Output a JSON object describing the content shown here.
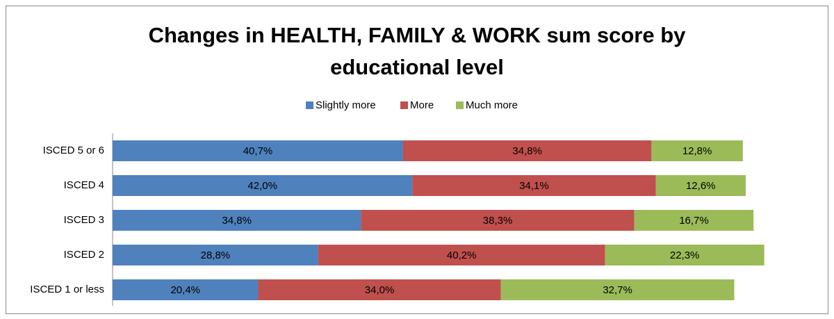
{
  "chart_data": {
    "type": "stacked-barh",
    "title": "Changes in HEALTH, FAMILY & WORK sum score by educational level",
    "categories": [
      "ISCED 5 or 6",
      "ISCED 4",
      "ISCED 3",
      "ISCED 2",
      "ISCED 1 or less"
    ],
    "series": [
      {
        "name": "Slightly more",
        "color": "#4f81bd",
        "values": [
          40.7,
          42.0,
          34.8,
          28.8,
          20.4
        ],
        "value_labels": [
          "40,7%",
          "42,0%",
          "34,8%",
          "28,8%",
          "20,4%"
        ]
      },
      {
        "name": "More",
        "color": "#c0504d",
        "values": [
          34.8,
          34.1,
          38.3,
          40.2,
          34.0
        ],
        "value_labels": [
          "34,8%",
          "34,1%",
          "38,3%",
          "40,2%",
          "34,0%"
        ]
      },
      {
        "name": "Much more",
        "color": "#9bbb59",
        "values": [
          12.8,
          12.6,
          16.7,
          22.3,
          32.7
        ],
        "value_labels": [
          "12,8%",
          "12,6%",
          "16,7%",
          "22,3%",
          "32,7%"
        ]
      }
    ],
    "xlim": [
      0,
      100
    ],
    "legend": "top"
  }
}
